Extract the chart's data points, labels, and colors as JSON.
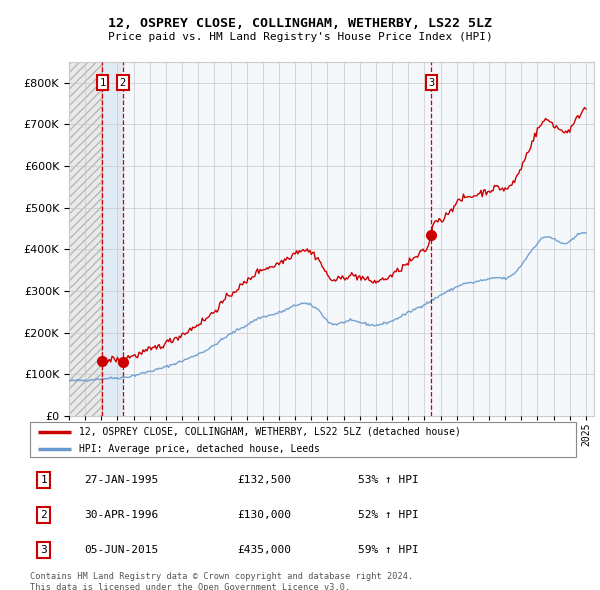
{
  "title1": "12, OSPREY CLOSE, COLLINGHAM, WETHERBY, LS22 5LZ",
  "title2": "Price paid vs. HM Land Registry's House Price Index (HPI)",
  "sale_dates_decimal": [
    1995.07,
    1996.33,
    2015.43
  ],
  "sale_prices": [
    132500,
    130000,
    435000
  ],
  "vline_dates": [
    1995.07,
    1996.33,
    2015.43
  ],
  "legend_line1": "12, OSPREY CLOSE, COLLINGHAM, WETHERBY, LS22 5LZ (detached house)",
  "legend_line2": "HPI: Average price, detached house, Leeds",
  "table": [
    {
      "num": "1",
      "date": "27-JAN-1995",
      "price": "£132,500",
      "pct": "53% ↑ HPI"
    },
    {
      "num": "2",
      "date": "30-APR-1996",
      "price": "£130,000",
      "pct": "52% ↑ HPI"
    },
    {
      "num": "3",
      "date": "05-JUN-2015",
      "price": "£435,000",
      "pct": "59% ↑ HPI"
    }
  ],
  "footer": "Contains HM Land Registry data © Crown copyright and database right 2024.\nThis data is licensed under the Open Government Licence v3.0.",
  "ylim": [
    0,
    850000
  ],
  "xlim_left": 1993.0,
  "xlim_right": 2025.5,
  "sale_color": "#cc0000",
  "hpi_color": "#6699cc"
}
